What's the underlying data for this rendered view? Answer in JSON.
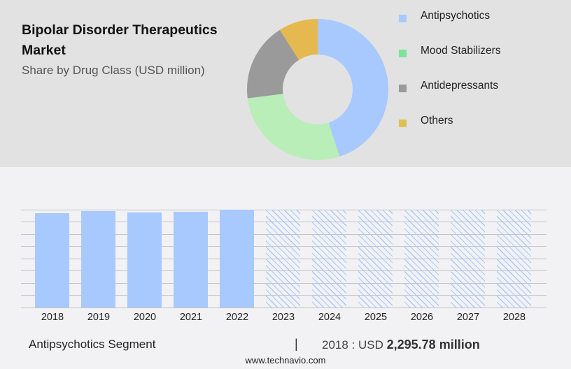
{
  "header": {
    "title": "Bipolar Disorder Therapeutics Market",
    "subtitle": "Share by Drug Class (USD million)"
  },
  "legend": [
    {
      "label": "Antipsychotics",
      "color": "#a8c9fd"
    },
    {
      "label": "Mood Stabilizers",
      "color": "#7de39a"
    },
    {
      "label": "Antidepressants",
      "color": "#9a9a9a"
    },
    {
      "label": "Others",
      "color": "#dcc255"
    }
  ],
  "footer": {
    "segment": "Antipsychotics Segment",
    "separator": "|",
    "year_prefix": "2018 : USD",
    "value": "2,295.78 million",
    "website": "www.technavio.com"
  },
  "chart_data": [
    {
      "type": "pie",
      "title": "Bipolar Disorder Therapeutics Market — Share by Drug Class (USD million)",
      "donut": true,
      "categories": [
        "Antipsychotics",
        "Mood Stabilizers",
        "Antidepressants",
        "Others"
      ],
      "values": [
        45,
        28,
        18,
        9
      ],
      "colors": [
        "#a8c9fd",
        "#b9eeb9",
        "#9a9a9a",
        "#e5b94f"
      ],
      "legend_position": "right"
    },
    {
      "type": "bar",
      "title": "Antipsychotics Segment",
      "categories": [
        "2018",
        "2019",
        "2020",
        "2021",
        "2022",
        "2023",
        "2024",
        "2025",
        "2026",
        "2027",
        "2028"
      ],
      "values": [
        2295.78,
        2345,
        2310,
        2330,
        2380,
        null,
        null,
        null,
        null,
        null,
        null
      ],
      "forecast": [
        false,
        false,
        false,
        false,
        false,
        true,
        true,
        true,
        true,
        true,
        true
      ],
      "forecast_display_height": [
        2380,
        2380,
        2380,
        2380,
        2380,
        2380
      ],
      "xlabel": "",
      "ylabel": "USD million",
      "grid": true,
      "y_ticks_shown": false,
      "annotation": "2018 : USD 2,295.78 million"
    }
  ]
}
